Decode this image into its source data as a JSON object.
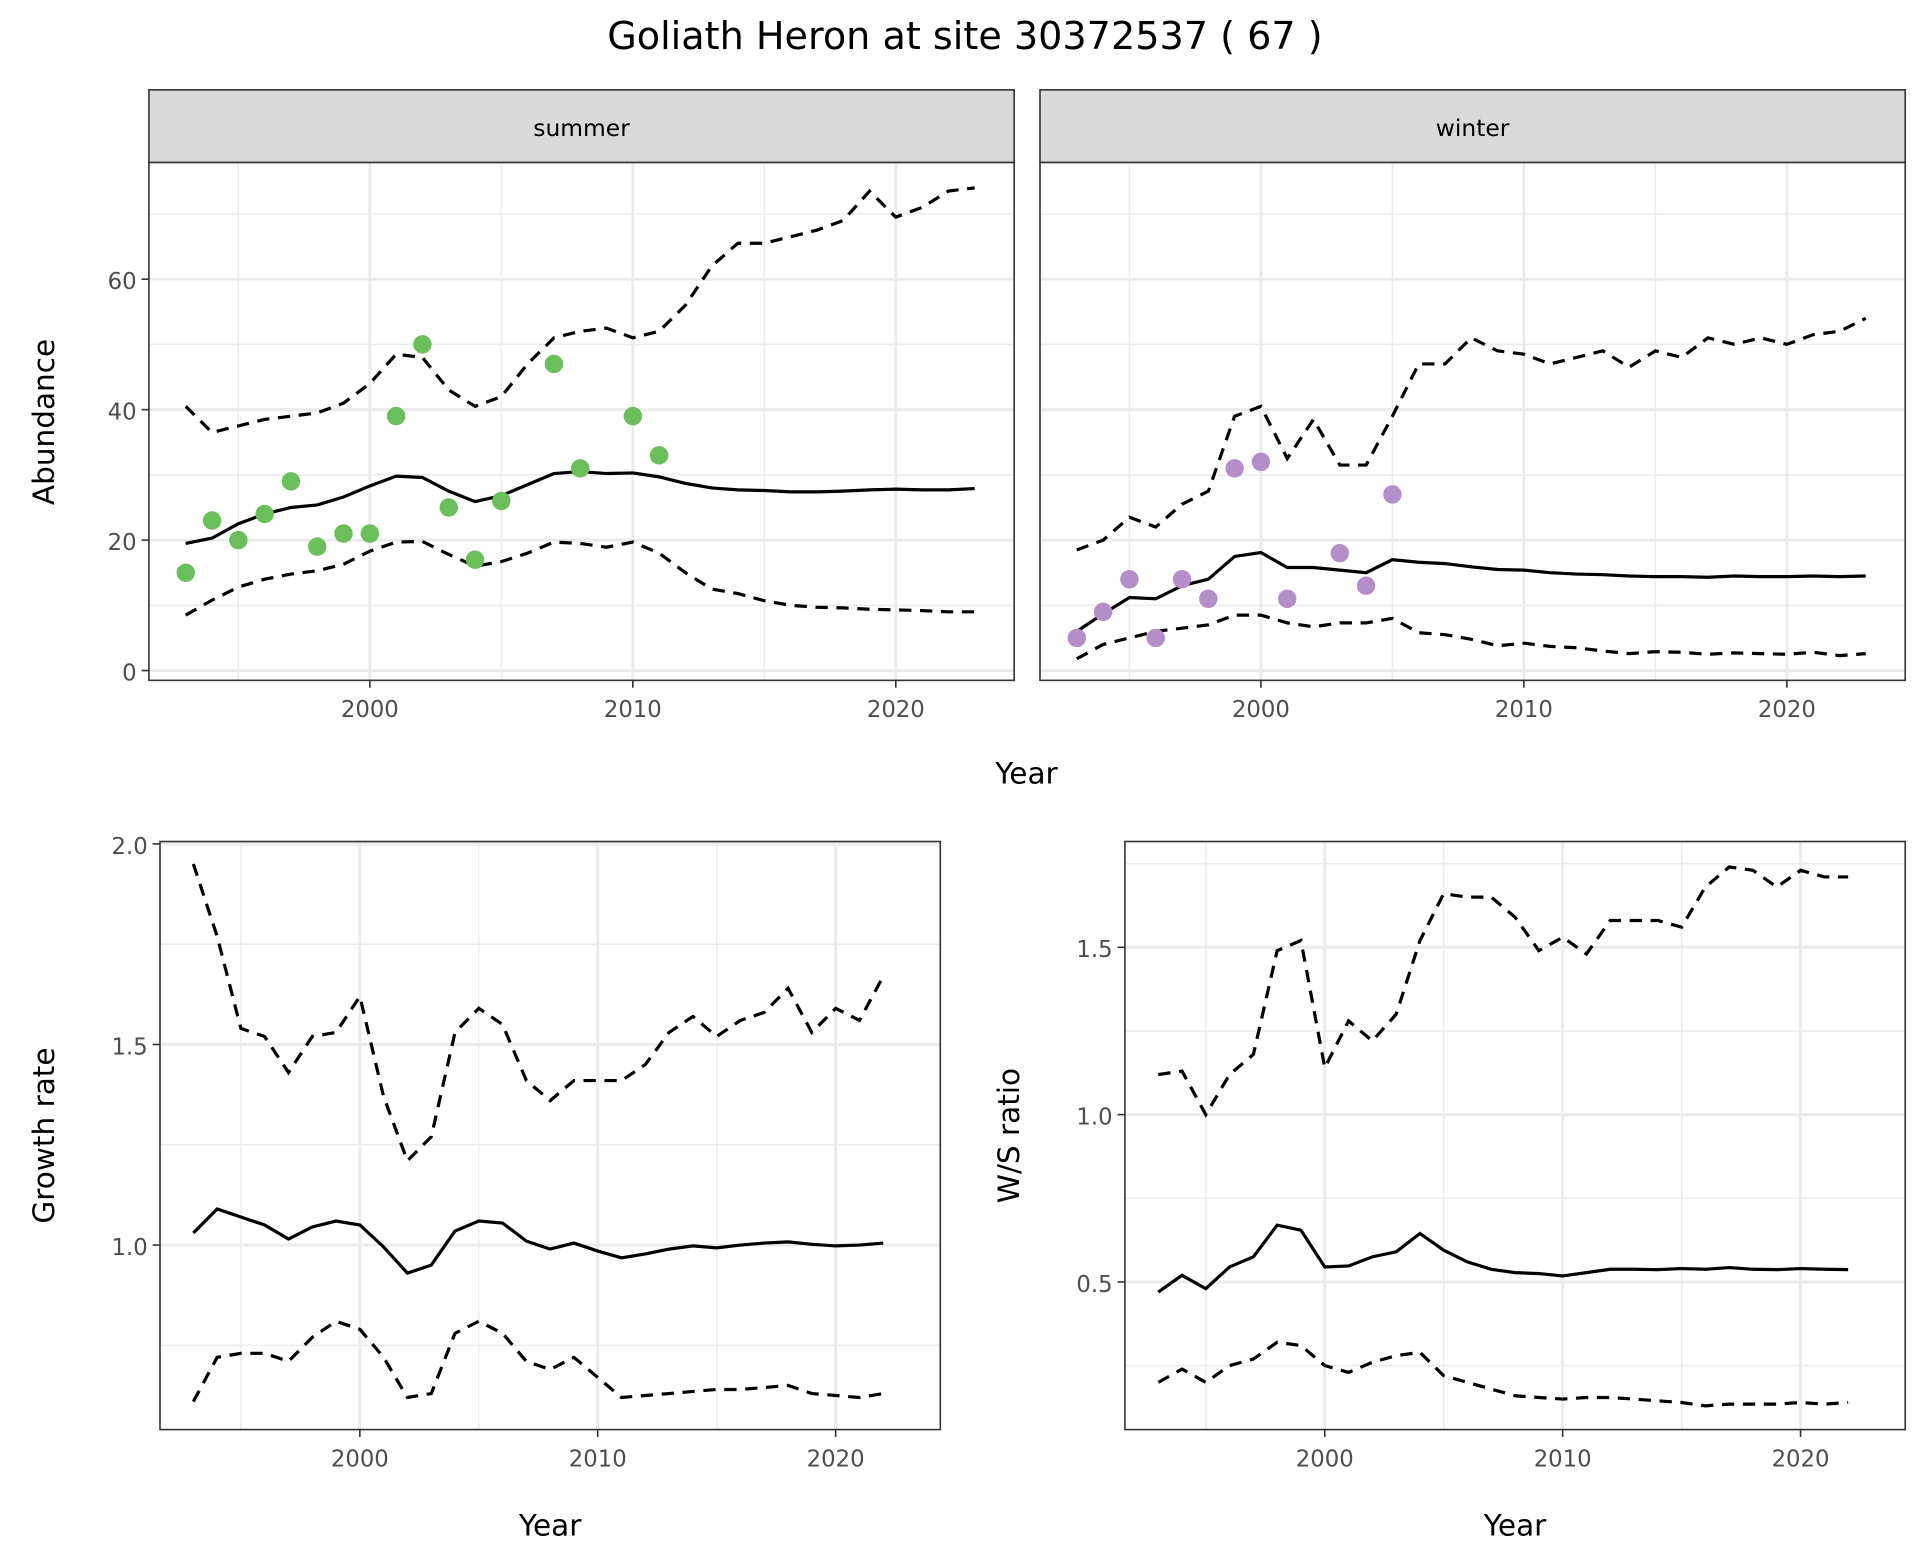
{
  "title": "Goliath Heron at site 30372537 ( 67 )",
  "colors": {
    "summer_points": "#6abf5b",
    "winter_points": "#b48ec9",
    "lines": "#000000",
    "grid": "#ebebeb",
    "strip_bg": "#d9d9d9"
  },
  "chart_data": [
    {
      "type": "line",
      "facet": "summer",
      "strip_label": "summer",
      "xlabel": "Year",
      "ylabel": "Abundance",
      "xlim": [
        1991.6,
        2024.5
      ],
      "ylim": [
        -1.5,
        77.9
      ],
      "x_ticks": [
        2000,
        2010,
        2020
      ],
      "y_ticks": [
        0,
        20,
        40,
        60
      ],
      "grid": true,
      "points": {
        "x": [
          1993,
          1994,
          1995,
          1996,
          1997,
          1998,
          1999,
          2000,
          2001,
          2002,
          2003,
          2004,
          2005,
          2007,
          2008,
          2010,
          2011
        ],
        "y": [
          15,
          23,
          20,
          24,
          29,
          19,
          21,
          21,
          39,
          50,
          25,
          17,
          26,
          47,
          31,
          39,
          33
        ]
      },
      "x": [
        1993,
        1994,
        1995,
        1996,
        1997,
        1998,
        1999,
        2000,
        2001,
        2002,
        2003,
        2004,
        2005,
        2006,
        2007,
        2008,
        2009,
        2010,
        2011,
        2012,
        2013,
        2014,
        2015,
        2016,
        2017,
        2018,
        2019,
        2020,
        2021,
        2022,
        2023
      ],
      "series": [
        {
          "style": "solid",
          "values": [
            19.5,
            20.3,
            22.5,
            24,
            25,
            25.4,
            26.6,
            28.3,
            29.8,
            29.6,
            27.5,
            25.9,
            26.8,
            28.5,
            30.2,
            30.5,
            30.2,
            30.3,
            29.7,
            28.7,
            28,
            27.7,
            27.6,
            27.4,
            27.4,
            27.5,
            27.7,
            27.8,
            27.7,
            27.7,
            27.9
          ]
        },
        {
          "style": "dashed",
          "values": [
            40.5,
            36.5,
            37.5,
            38.5,
            39,
            39.5,
            41,
            44,
            48.5,
            48,
            43,
            40.5,
            42,
            47,
            51,
            52,
            52.5,
            51,
            52,
            56,
            62,
            65.5,
            65.5,
            66.5,
            67.5,
            69,
            73.5,
            69.5,
            71,
            73.5,
            74
          ]
        },
        {
          "style": "dashed",
          "values": [
            8.5,
            10.8,
            12.8,
            14,
            14.8,
            15.3,
            16.3,
            18.3,
            19.7,
            19.8,
            17.8,
            16,
            16.7,
            18,
            19.7,
            19.5,
            18.9,
            19.7,
            18,
            15,
            12.5,
            11.8,
            10.7,
            10,
            9.7,
            9.6,
            9.4,
            9.3,
            9.2,
            9,
            9
          ]
        }
      ]
    },
    {
      "type": "line",
      "facet": "winter",
      "strip_label": "winter",
      "xlabel": "Year",
      "ylabel": "Abundance",
      "xlim": [
        1991.6,
        2024.5
      ],
      "ylim": [
        -1.5,
        77.9
      ],
      "x_ticks": [
        2000,
        2010,
        2020
      ],
      "y_ticks": [
        0,
        20,
        40,
        60
      ],
      "grid": true,
      "points": {
        "x": [
          1993,
          1994,
          1995,
          1996,
          1997,
          1998,
          1999,
          2000,
          2001,
          2003,
          2004,
          2005
        ],
        "y": [
          5,
          9,
          14,
          5,
          14,
          11,
          31,
          32,
          11,
          18,
          13,
          27
        ]
      },
      "x": [
        1993,
        1994,
        1995,
        1996,
        1997,
        1998,
        1999,
        2000,
        2001,
        2002,
        2003,
        2004,
        2005,
        2006,
        2007,
        2008,
        2009,
        2010,
        2011,
        2012,
        2013,
        2014,
        2015,
        2016,
        2017,
        2018,
        2019,
        2020,
        2021,
        2022,
        2023
      ],
      "series": [
        {
          "style": "solid",
          "values": [
            6,
            8.7,
            11.2,
            11,
            13,
            14,
            17.5,
            18.1,
            15.8,
            15.8,
            15.4,
            15,
            17,
            16.6,
            16.4,
            15.9,
            15.5,
            15.4,
            15,
            14.8,
            14.7,
            14.5,
            14.4,
            14.4,
            14.3,
            14.5,
            14.4,
            14.4,
            14.5,
            14.4,
            14.5
          ]
        },
        {
          "style": "dashed",
          "values": [
            18.5,
            20,
            23.5,
            22,
            25.5,
            27.5,
            39,
            40.5,
            32.5,
            38.5,
            31.5,
            31.5,
            39,
            47,
            47,
            51,
            49,
            48.5,
            47,
            48,
            49,
            46.5,
            49,
            48,
            51,
            50,
            51,
            50,
            51.5,
            52,
            54
          ]
        },
        {
          "style": "dashed",
          "values": [
            1.8,
            4,
            5,
            6,
            6.5,
            7,
            8.5,
            8.5,
            7.3,
            6.7,
            7.3,
            7.3,
            8,
            5.8,
            5.5,
            4.8,
            3.8,
            4.2,
            3.7,
            3.5,
            3,
            2.6,
            2.9,
            2.8,
            2.5,
            2.7,
            2.6,
            2.5,
            2.8,
            2.3,
            2.6
          ]
        }
      ]
    },
    {
      "type": "line",
      "xlabel": "Year",
      "ylabel": "Growth rate",
      "xlim": [
        1991.6,
        2024.4
      ],
      "ylim": [
        0.54,
        2.006
      ],
      "x_ticks": [
        2000,
        2010,
        2020
      ],
      "y_ticks": [
        "1.0",
        "1.5",
        "2.0"
      ],
      "grid": true,
      "x": [
        1993,
        1994,
        1995,
        1996,
        1997,
        1998,
        1999,
        2000,
        2001,
        2002,
        2003,
        2004,
        2005,
        2006,
        2007,
        2008,
        2009,
        2010,
        2011,
        2012,
        2013,
        2014,
        2015,
        2016,
        2017,
        2018,
        2019,
        2020,
        2021,
        2022
      ],
      "series": [
        {
          "style": "solid",
          "values": [
            1.03,
            1.09,
            1.07,
            1.05,
            1.015,
            1.045,
            1.06,
            1.05,
            0.995,
            0.93,
            0.95,
            1.035,
            1.06,
            1.055,
            1.01,
            0.99,
            1.005,
            0.985,
            0.968,
            0.978,
            0.99,
            0.998,
            0.993,
            1,
            1.005,
            1.008,
            1.002,
            0.998,
            1,
            1.005
          ]
        },
        {
          "style": "dashed",
          "values": [
            1.95,
            1.77,
            1.54,
            1.52,
            1.43,
            1.52,
            1.53,
            1.62,
            1.37,
            1.21,
            1.27,
            1.53,
            1.59,
            1.55,
            1.41,
            1.36,
            1.41,
            1.41,
            1.41,
            1.45,
            1.53,
            1.57,
            1.52,
            1.56,
            1.58,
            1.64,
            1.53,
            1.59,
            1.56,
            1.67
          ]
        },
        {
          "style": "dashed",
          "values": [
            0.61,
            0.72,
            0.73,
            0.73,
            0.71,
            0.77,
            0.81,
            0.79,
            0.72,
            0.62,
            0.63,
            0.78,
            0.81,
            0.78,
            0.71,
            0.69,
            0.72,
            0.67,
            0.62,
            0.625,
            0.63,
            0.635,
            0.64,
            0.64,
            0.645,
            0.65,
            0.63,
            0.625,
            0.62,
            0.63
          ]
        }
      ]
    },
    {
      "type": "line",
      "xlabel": "Year",
      "ylabel": "W/S ratio",
      "xlim": [
        1991.6,
        2024.4
      ],
      "ylim": [
        0.059,
        1.816
      ],
      "x_ticks": [
        2000,
        2010,
        2020
      ],
      "y_ticks": [
        "0.5",
        "1.0",
        "1.5"
      ],
      "grid": true,
      "x": [
        1993,
        1994,
        1995,
        1996,
        1997,
        1998,
        1999,
        2000,
        2001,
        2002,
        2003,
        2004,
        2005,
        2006,
        2007,
        2008,
        2009,
        2010,
        2011,
        2012,
        2013,
        2014,
        2015,
        2016,
        2017,
        2018,
        2019,
        2020,
        2021,
        2022
      ],
      "series": [
        {
          "style": "solid",
          "values": [
            0.47,
            0.52,
            0.48,
            0.545,
            0.575,
            0.67,
            0.655,
            0.545,
            0.548,
            0.575,
            0.59,
            0.645,
            0.595,
            0.56,
            0.538,
            0.528,
            0.525,
            0.518,
            0.528,
            0.538,
            0.538,
            0.537,
            0.54,
            0.538,
            0.543,
            0.538,
            0.537,
            0.54,
            0.538,
            0.537
          ]
        },
        {
          "style": "dashed",
          "values": [
            1.12,
            1.13,
            1,
            1.12,
            1.18,
            1.49,
            1.52,
            1.14,
            1.28,
            1.22,
            1.3,
            1.52,
            1.66,
            1.65,
            1.65,
            1.59,
            1.49,
            1.53,
            1.48,
            1.58,
            1.58,
            1.58,
            1.56,
            1.68,
            1.74,
            1.73,
            1.68,
            1.73,
            1.71,
            1.71
          ]
        },
        {
          "style": "dashed",
          "values": [
            0.2,
            0.24,
            0.2,
            0.25,
            0.27,
            0.32,
            0.31,
            0.25,
            0.23,
            0.26,
            0.28,
            0.29,
            0.22,
            0.2,
            0.18,
            0.16,
            0.155,
            0.15,
            0.155,
            0.155,
            0.15,
            0.145,
            0.14,
            0.13,
            0.135,
            0.135,
            0.135,
            0.14,
            0.135,
            0.14
          ]
        }
      ]
    }
  ]
}
